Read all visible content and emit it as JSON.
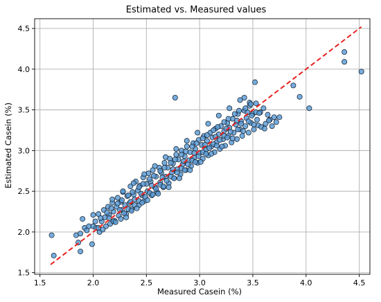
{
  "chart_data": {
    "type": "scatter",
    "title": "Estimated vs. Measured values",
    "xlabel": "Measured Casein (%)",
    "ylabel": "Estimated Casein (%)",
    "xlim": [
      1.45,
      4.6
    ],
    "ylim": [
      1.48,
      4.62
    ],
    "xticks": [
      1.5,
      2.0,
      2.5,
      3.0,
      3.5,
      4.0,
      4.5
    ],
    "yticks": [
      1.5,
      2.0,
      2.5,
      3.0,
      3.5,
      4.0,
      4.5
    ],
    "xtick_labels": [
      "1.5",
      "2.0",
      "2.5",
      "3.0",
      "3.5",
      "4.0",
      "4.5"
    ],
    "ytick_labels": [
      "1.5",
      "2.0",
      "2.5",
      "3.0",
      "3.5",
      "4.0",
      "4.5"
    ],
    "grid": true,
    "colors": {
      "points": "#5a9bd5",
      "point_edge": "#1b2a3a",
      "identity_line": "#e8211e"
    },
    "identity_line": {
      "style": "dashed",
      "from": [
        1.6,
        1.6
      ],
      "to": [
        4.52,
        4.52
      ]
    },
    "points": [
      [
        1.61,
        1.96
      ],
      [
        1.63,
        1.71
      ],
      [
        1.84,
        1.96
      ],
      [
        1.86,
        1.87
      ],
      [
        1.88,
        1.76
      ],
      [
        1.88,
        1.98
      ],
      [
        1.9,
        2.16
      ],
      [
        1.92,
        2.05
      ],
      [
        1.94,
        2.02
      ],
      [
        1.96,
        2.07
      ],
      [
        1.99,
        1.85
      ],
      [
        2.0,
        2.07
      ],
      [
        2.0,
        2.21
      ],
      [
        2.02,
        2.13
      ],
      [
        2.03,
        2.05
      ],
      [
        2.05,
        2.22
      ],
      [
        2.06,
        2.0
      ],
      [
        2.08,
        2.13
      ],
      [
        2.1,
        2.27
      ],
      [
        2.11,
        2.18
      ],
      [
        2.12,
        2.07
      ],
      [
        2.14,
        2.31
      ],
      [
        2.15,
        2.21
      ],
      [
        2.16,
        2.1
      ],
      [
        2.18,
        2.36
      ],
      [
        2.19,
        2.25
      ],
      [
        2.2,
        2.14
      ],
      [
        2.22,
        2.31
      ],
      [
        2.23,
        2.42
      ],
      [
        2.24,
        2.2
      ],
      [
        2.26,
        2.37
      ],
      [
        2.27,
        2.27
      ],
      [
        2.28,
        2.49
      ],
      [
        2.3,
        2.33
      ],
      [
        2.31,
        2.22
      ],
      [
        2.32,
        2.44
      ],
      [
        2.34,
        2.35
      ],
      [
        2.35,
        2.56
      ],
      [
        2.36,
        2.28
      ],
      [
        2.38,
        2.46
      ],
      [
        2.39,
        2.4
      ],
      [
        2.4,
        2.62
      ],
      [
        2.42,
        2.51
      ],
      [
        2.43,
        2.33
      ],
      [
        2.44,
        2.57
      ],
      [
        2.46,
        2.45
      ],
      [
        2.47,
        2.67
      ],
      [
        2.48,
        2.38
      ],
      [
        2.5,
        2.59
      ],
      [
        2.51,
        2.5
      ],
      [
        2.52,
        2.72
      ],
      [
        2.54,
        2.62
      ],
      [
        2.55,
        2.45
      ],
      [
        2.56,
        2.76
      ],
      [
        2.58,
        2.55
      ],
      [
        2.59,
        2.68
      ],
      [
        2.6,
        2.49
      ],
      [
        2.62,
        2.79
      ],
      [
        2.63,
        2.61
      ],
      [
        2.64,
        2.73
      ],
      [
        2.66,
        2.55
      ],
      [
        2.67,
        2.85
      ],
      [
        2.68,
        2.68
      ],
      [
        2.7,
        2.79
      ],
      [
        2.71,
        2.6
      ],
      [
        2.72,
        2.9
      ],
      [
        2.74,
        2.73
      ],
      [
        2.75,
        2.84
      ],
      [
        2.76,
        2.66
      ],
      [
        2.77,
        3.65
      ],
      [
        2.78,
        2.95
      ],
      [
        2.79,
        2.77
      ],
      [
        2.8,
        2.89
      ],
      [
        2.82,
        2.71
      ],
      [
        2.83,
        3.0
      ],
      [
        2.84,
        2.83
      ],
      [
        2.86,
        2.93
      ],
      [
        2.87,
        2.76
      ],
      [
        2.88,
        3.05
      ],
      [
        2.9,
        2.88
      ],
      [
        2.91,
        2.98
      ],
      [
        2.92,
        2.81
      ],
      [
        2.94,
        3.09
      ],
      [
        2.95,
        2.92
      ],
      [
        2.96,
        3.02
      ],
      [
        2.98,
        2.85
      ],
      [
        2.99,
        3.13
      ],
      [
        3.0,
        2.97
      ],
      [
        3.02,
        3.07
      ],
      [
        3.03,
        2.9
      ],
      [
        3.04,
        3.18
      ],
      [
        3.06,
        3.01
      ],
      [
        3.07,
        3.12
      ],
      [
        3.08,
        2.94
      ],
      [
        3.1,
        3.22
      ],
      [
        3.11,
        3.05
      ],
      [
        3.12,
        3.16
      ],
      [
        3.14,
        2.98
      ],
      [
        3.15,
        3.27
      ],
      [
        3.16,
        3.1
      ],
      [
        3.18,
        3.2
      ],
      [
        3.19,
        3.02
      ],
      [
        3.2,
        3.3
      ],
      [
        3.22,
        3.14
      ],
      [
        3.23,
        3.24
      ],
      [
        3.24,
        3.06
      ],
      [
        3.26,
        3.34
      ],
      [
        3.27,
        3.18
      ],
      [
        3.28,
        3.28
      ],
      [
        3.3,
        3.1
      ],
      [
        3.31,
        3.39
      ],
      [
        3.32,
        3.22
      ],
      [
        3.34,
        3.32
      ],
      [
        3.35,
        3.14
      ],
      [
        3.36,
        3.45
      ],
      [
        3.38,
        3.26
      ],
      [
        3.39,
        3.36
      ],
      [
        3.4,
        3.18
      ],
      [
        3.42,
        3.49
      ],
      [
        3.43,
        3.3
      ],
      [
        3.44,
        3.4
      ],
      [
        3.46,
        3.22
      ],
      [
        3.47,
        3.55
      ],
      [
        3.48,
        3.34
      ],
      [
        3.5,
        3.45
      ],
      [
        3.51,
        3.26
      ],
      [
        3.52,
        3.84
      ],
      [
        3.53,
        3.58
      ],
      [
        3.54,
        3.38
      ],
      [
        3.55,
        3.31
      ],
      [
        3.57,
        3.47
      ],
      [
        3.58,
        3.29
      ],
      [
        3.6,
        3.52
      ],
      [
        3.62,
        3.33
      ],
      [
        3.64,
        3.44
      ],
      [
        3.66,
        3.38
      ],
      [
        3.68,
        3.3
      ],
      [
        3.7,
        3.41
      ],
      [
        3.72,
        3.35
      ],
      [
        3.88,
        3.8
      ],
      [
        3.94,
        3.66
      ],
      [
        4.03,
        3.52
      ],
      [
        4.36,
        4.09
      ],
      [
        4.36,
        4.21
      ],
      [
        4.52,
        3.97
      ],
      [
        2.05,
        2.05
      ],
      [
        2.15,
        2.17
      ],
      [
        2.25,
        2.27
      ],
      [
        2.35,
        2.37
      ],
      [
        2.45,
        2.47
      ],
      [
        2.55,
        2.57
      ],
      [
        2.65,
        2.67
      ],
      [
        2.75,
        2.77
      ],
      [
        2.85,
        2.87
      ],
      [
        2.95,
        2.97
      ],
      [
        3.05,
        3.07
      ],
      [
        3.15,
        3.17
      ],
      [
        3.25,
        3.27
      ],
      [
        3.35,
        3.37
      ],
      [
        3.45,
        3.47
      ],
      [
        2.09,
        2.03
      ],
      [
        2.19,
        2.13
      ],
      [
        2.29,
        2.23
      ],
      [
        2.39,
        2.33
      ],
      [
        2.49,
        2.43
      ],
      [
        2.59,
        2.53
      ],
      [
        2.69,
        2.63
      ],
      [
        2.79,
        2.73
      ],
      [
        2.89,
        2.83
      ],
      [
        2.99,
        2.93
      ],
      [
        3.09,
        3.03
      ],
      [
        3.19,
        3.13
      ],
      [
        3.29,
        3.23
      ],
      [
        3.39,
        3.33
      ],
      [
        3.49,
        3.43
      ],
      [
        2.07,
        2.17
      ],
      [
        2.17,
        2.29
      ],
      [
        2.27,
        2.39
      ],
      [
        2.37,
        2.49
      ],
      [
        2.47,
        2.59
      ],
      [
        2.57,
        2.69
      ],
      [
        2.67,
        2.79
      ],
      [
        2.77,
        2.89
      ],
      [
        2.87,
        2.99
      ],
      [
        2.97,
        3.09
      ],
      [
        3.07,
        3.19
      ],
      [
        3.17,
        3.29
      ],
      [
        3.27,
        3.39
      ],
      [
        3.37,
        3.49
      ],
      [
        3.47,
        3.59
      ],
      [
        2.13,
        2.24
      ],
      [
        2.23,
        2.35
      ],
      [
        2.33,
        2.45
      ],
      [
        2.43,
        2.55
      ],
      [
        2.53,
        2.65
      ],
      [
        2.63,
        2.75
      ],
      [
        2.73,
        2.85
      ],
      [
        2.83,
        2.95
      ],
      [
        2.93,
        3.05
      ],
      [
        3.03,
        3.15
      ],
      [
        3.13,
        3.25
      ],
      [
        3.23,
        3.35
      ],
      [
        3.33,
        3.45
      ],
      [
        3.43,
        3.52
      ],
      [
        3.53,
        3.47
      ],
      [
        2.21,
        2.12
      ],
      [
        2.31,
        2.18
      ],
      [
        2.41,
        2.29
      ],
      [
        2.51,
        2.39
      ],
      [
        2.61,
        2.47
      ],
      [
        2.71,
        2.55
      ],
      [
        2.81,
        2.66
      ],
      [
        2.91,
        2.76
      ],
      [
        3.01,
        2.86
      ],
      [
        3.11,
        2.96
      ],
      [
        3.21,
        3.05
      ],
      [
        3.31,
        3.15
      ],
      [
        3.41,
        3.24
      ],
      [
        3.51,
        3.32
      ],
      [
        3.61,
        3.27
      ],
      [
        2.18,
        2.4
      ],
      [
        2.28,
        2.5
      ],
      [
        2.38,
        2.6
      ],
      [
        2.48,
        2.71
      ],
      [
        2.58,
        2.81
      ],
      [
        2.68,
        2.92
      ],
      [
        2.78,
        3.02
      ],
      [
        2.88,
        3.12
      ],
      [
        2.98,
        3.22
      ],
      [
        3.08,
        3.33
      ],
      [
        3.18,
        3.43
      ],
      [
        3.28,
        3.52
      ],
      [
        3.38,
        3.62
      ],
      [
        3.48,
        3.57
      ],
      [
        3.42,
        3.65
      ],
      [
        2.33,
        2.28
      ],
      [
        2.43,
        2.38
      ],
      [
        2.53,
        2.48
      ],
      [
        2.63,
        2.58
      ],
      [
        2.73,
        2.68
      ],
      [
        2.83,
        2.78
      ],
      [
        2.93,
        2.88
      ],
      [
        3.03,
        2.98
      ],
      [
        3.13,
        3.08
      ],
      [
        3.23,
        3.18
      ],
      [
        2.26,
        2.16
      ],
      [
        2.36,
        2.26
      ],
      [
        2.46,
        2.36
      ],
      [
        2.56,
        2.46
      ],
      [
        2.66,
        2.56
      ],
      [
        2.76,
        2.66
      ],
      [
        2.86,
        2.76
      ],
      [
        2.96,
        2.86
      ],
      [
        3.06,
        2.96
      ],
      [
        3.16,
        3.06
      ],
      [
        3.26,
        3.16
      ],
      [
        3.36,
        3.26
      ],
      [
        3.46,
        3.36
      ],
      [
        3.56,
        3.46
      ],
      [
        3.65,
        3.37
      ],
      [
        3.75,
        3.41
      ]
    ]
  }
}
